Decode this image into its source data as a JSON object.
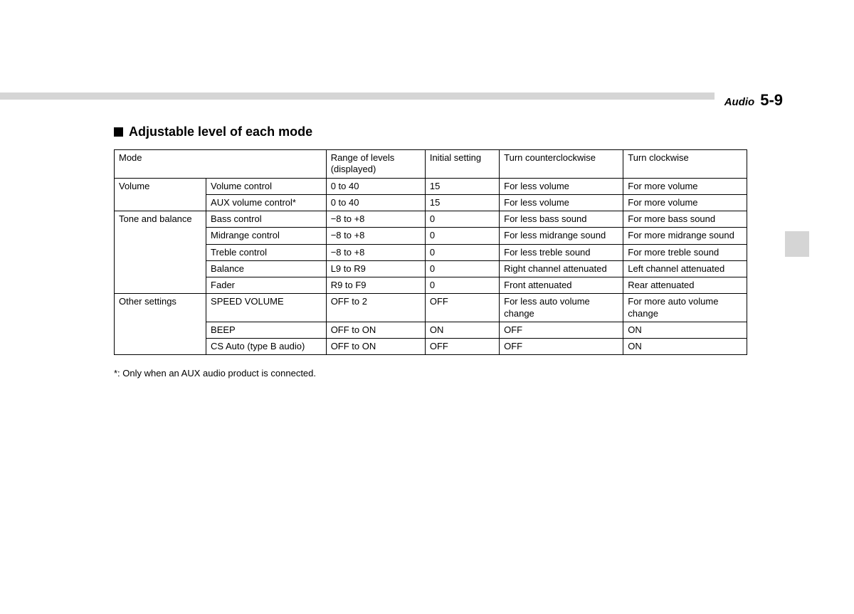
{
  "header": {
    "section": "Audio",
    "page": "5-9"
  },
  "title": "Adjustable level of each mode",
  "table": {
    "columns": [
      "Mode",
      "Range of levels (displayed)",
      "Initial setting",
      "Turn counterclockwise",
      "Turn clockwise"
    ],
    "groups": [
      {
        "label": "Volume",
        "rows": [
          {
            "name": "Volume control",
            "range": "0 to 40",
            "initial": "15",
            "ccw": "For less volume",
            "cw": "For more volume"
          },
          {
            "name": "AUX volume control*",
            "range": "0 to 40",
            "initial": "15",
            "ccw": "For less volume",
            "cw": "For more volume"
          }
        ]
      },
      {
        "label": "Tone and balance",
        "rows": [
          {
            "name": "Bass control",
            "range": "−8 to +8",
            "initial": "0",
            "ccw": "For less bass sound",
            "cw": "For more bass sound"
          },
          {
            "name": "Midrange control",
            "range": "−8 to +8",
            "initial": "0",
            "ccw": "For less midrange sound",
            "cw": "For more midrange sound"
          },
          {
            "name": "Treble control",
            "range": "−8 to +8",
            "initial": "0",
            "ccw": "For less treble sound",
            "cw": "For more treble sound"
          },
          {
            "name": "Balance",
            "range": "L9 to R9",
            "initial": "0",
            "ccw": "Right channel attenuated",
            "cw": "Left channel attenuated"
          },
          {
            "name": "Fader",
            "range": "R9 to F9",
            "initial": "0",
            "ccw": "Front attenuated",
            "cw": "Rear attenuated"
          }
        ]
      },
      {
        "label": "Other settings",
        "rows": [
          {
            "name": "SPEED VOLUME",
            "range": "OFF to 2",
            "initial": "OFF",
            "ccw": "For less auto volume change",
            "cw": "For more auto volume change"
          },
          {
            "name": "BEEP",
            "range": "OFF to ON",
            "initial": "ON",
            "ccw": "OFF",
            "cw": "ON"
          },
          {
            "name": "CS Auto (type B audio)",
            "range": "OFF to ON",
            "initial": "OFF",
            "ccw": "OFF",
            "cw": "ON"
          }
        ]
      }
    ]
  },
  "footnote": "*: Only when an AUX audio product is connected.",
  "colors": {
    "header_bar": "#d5d5d5",
    "side_tab": "#d5d5d5",
    "background": "#ffffff",
    "text": "#000000",
    "border": "#000000"
  }
}
